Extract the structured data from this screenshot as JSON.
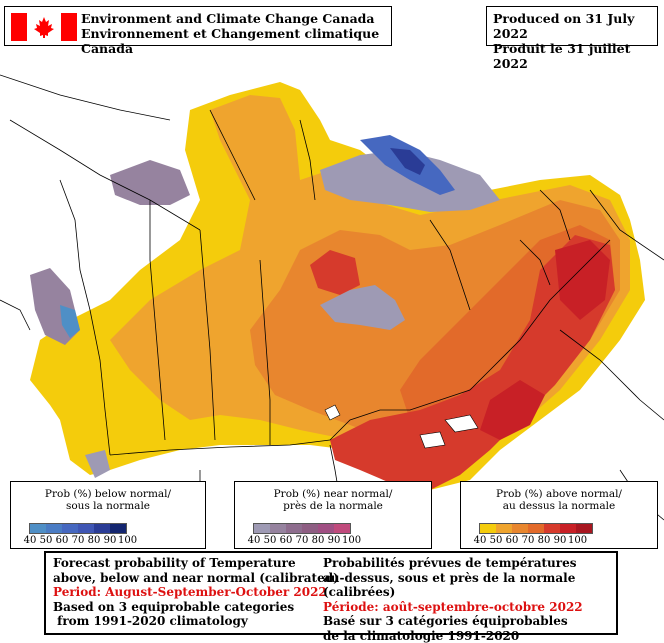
{
  "header": {
    "agency_en": "Environment and Climate Change Canada",
    "agency_fr": "Environnement et Changement climatique Canada",
    "produced_en": "Produced on 31 July 2022",
    "produced_fr": "Produit le 31 juillet 2022"
  },
  "legends": {
    "below": {
      "title_en": "Prob (%) below normal/",
      "title_fr": "sous la normale",
      "ticks": [
        "40",
        "50",
        "60",
        "70",
        "80",
        "90",
        "100"
      ],
      "colors": [
        "#4f8fc6",
        "#4a7cc4",
        "#4668c0",
        "#3f56b4",
        "#2a3c96",
        "#142670"
      ]
    },
    "near": {
      "title_en": "Prob (%) near normal/",
      "title_fr": "près de la normale",
      "ticks": [
        "40",
        "50",
        "60",
        "70",
        "80",
        "90",
        "100"
      ],
      "colors": [
        "#9e9ab4",
        "#96839f",
        "#8e6d8e",
        "#8e5e83",
        "#a04f83",
        "#c04a7c"
      ]
    },
    "above": {
      "title_en": "Prob (%) above normal/",
      "title_fr": "au dessus la normale",
      "ticks": [
        "40",
        "50",
        "60",
        "70",
        "80",
        "90",
        "100"
      ],
      "colors": [
        "#f4cc0c",
        "#efa42e",
        "#e8862e",
        "#e26a2a",
        "#d63a2c",
        "#c82026",
        "#a81620"
      ]
    }
  },
  "footer": {
    "en_line1": "Forecast probability of Temperature",
    "en_line2": "above, below and near normal (calibrated)",
    "en_period": "Period: August-September-October 2022",
    "en_line4": "Based on 3 equiprobable categories",
    "en_line5": " from 1991-2020 climatology",
    "fr_line1": "Probabilités prévues de températures",
    "fr_line2": "au-dessus, sous et près de la normale (calibrées)",
    "fr_period": "Période: août-septembre-octobre 2022",
    "fr_line4": "Basé sur 3 catégories équiprobables",
    "fr_line5": "de la climatologie 1991-2020"
  },
  "map_colors": {
    "above_40": "#f4cc0c",
    "above_50": "#efa42e",
    "above_60": "#e8862e",
    "above_70": "#e26a2a",
    "above_80": "#d63a2c",
    "above_90": "#c82026",
    "above_100": "#a81620",
    "near_40": "#9e9ab4",
    "near_50": "#96839f",
    "below_40": "#4f8fc6",
    "below_60": "#4668c0",
    "below_80": "#2a3c96",
    "flag_red": "#ff0000"
  }
}
